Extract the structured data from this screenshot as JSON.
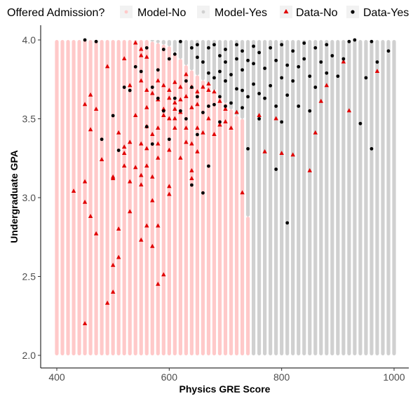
{
  "chart_data": {
    "type": "scatter",
    "title": "",
    "xlabel": "Physics GRE Score",
    "ylabel": "Undergraduate GPA",
    "xlim": [
      400,
      1000
    ],
    "ylim": [
      2.0,
      4.0
    ],
    "x_ticks": [
      400,
      600,
      800,
      1000
    ],
    "x_tick_labels": [
      "400",
      "600",
      "800",
      "1000"
    ],
    "y_ticks": [
      2.0,
      2.5,
      3.0,
      3.5,
      4.0
    ],
    "y_tick_labels": [
      "2.0",
      "2.5",
      "3.0",
      "3.5",
      "4.0"
    ],
    "grid": false,
    "legend_position": "top",
    "legend": {
      "title": "Offered Admission?",
      "entries": [
        {
          "label": "Model-No",
          "color": "#ffc9c9",
          "shape": "circle"
        },
        {
          "label": "Model-Yes",
          "color": "#d0d0d0",
          "shape": "circle"
        },
        {
          "label": "Data-No",
          "color": "#e00000",
          "shape": "triangle"
        },
        {
          "label": "Data-Yes",
          "color": "#000000",
          "shape": "circle"
        }
      ]
    },
    "model_grid": {
      "x_start": 400,
      "x_end": 1000,
      "x_step": 10,
      "y_start": 2.0,
      "y_end": 4.0,
      "y_step": 0.01,
      "boundary": [
        {
          "x": 400,
          "y": 4.0
        },
        {
          "x": 560,
          "y": 4.0
        },
        {
          "x": 600,
          "y": 3.96
        },
        {
          "x": 630,
          "y": 3.84
        },
        {
          "x": 680,
          "y": 3.68
        },
        {
          "x": 700,
          "y": 3.6
        },
        {
          "x": 720,
          "y": 3.52
        },
        {
          "x": 730,
          "y": 3.5
        },
        {
          "x": 740,
          "y": 2.88
        },
        {
          "x": 750,
          "y": 2.0
        }
      ],
      "colors": {
        "no": "#ffc9c9",
        "yes": "#d0d0d0"
      }
    },
    "series": [
      {
        "name": "Data-No",
        "color": "#e00000",
        "shape": "triangle",
        "points": [
          [
            430,
            3.04
          ],
          [
            450,
            3.59
          ],
          [
            450,
            3.1
          ],
          [
            450,
            2.97
          ],
          [
            450,
            2.2
          ],
          [
            460,
            3.65
          ],
          [
            460,
            3.43
          ],
          [
            460,
            2.88
          ],
          [
            470,
            3.56
          ],
          [
            470,
            2.77
          ],
          [
            480,
            3.24
          ],
          [
            490,
            3.83
          ],
          [
            490,
            2.33
          ],
          [
            500,
            3.13
          ],
          [
            500,
            3.12
          ],
          [
            500,
            2.57
          ],
          [
            500,
            2.4
          ],
          [
            510,
            3.41
          ],
          [
            510,
            2.8
          ],
          [
            510,
            2.62
          ],
          [
            520,
            3.88
          ],
          [
            520,
            3.32
          ],
          [
            520,
            3.28
          ],
          [
            520,
            3.2
          ],
          [
            530,
            3.71
          ],
          [
            530,
            3.35
          ],
          [
            530,
            3.1
          ],
          [
            530,
            2.91
          ],
          [
            540,
            3.98
          ],
          [
            540,
            3.52
          ],
          [
            540,
            3.19
          ],
          [
            550,
            3.94
          ],
          [
            550,
            3.9
          ],
          [
            550,
            3.74
          ],
          [
            550,
            3.34
          ],
          [
            550,
            3.14
          ],
          [
            550,
            3.08
          ],
          [
            550,
            2.73
          ],
          [
            560,
            3.89
          ],
          [
            560,
            3.68
          ],
          [
            560,
            3.57
          ],
          [
            560,
            3.45
          ],
          [
            560,
            3.31
          ],
          [
            560,
            3.2
          ],
          [
            560,
            2.82
          ],
          [
            570,
            3.66
          ],
          [
            570,
            3.4
          ],
          [
            570,
            3.13
          ],
          [
            570,
            2.98
          ],
          [
            570,
            2.69
          ],
          [
            580,
            3.74
          ],
          [
            580,
            3.62
          ],
          [
            580,
            3.44
          ],
          [
            580,
            3.34
          ],
          [
            580,
            3.25
          ],
          [
            580,
            2.82
          ],
          [
            580,
            2.45
          ],
          [
            590,
            3.71
          ],
          [
            590,
            3.56
          ],
          [
            590,
            3.52
          ],
          [
            590,
            2.51
          ],
          [
            600,
            3.68
          ],
          [
            600,
            3.63
          ],
          [
            600,
            3.5
          ],
          [
            600,
            3.3
          ],
          [
            600,
            3.07
          ],
          [
            600,
            3.02
          ],
          [
            610,
            3.73
          ],
          [
            610,
            3.6
          ],
          [
            610,
            3.56
          ],
          [
            610,
            3.5
          ],
          [
            610,
            3.44
          ],
          [
            620,
            3.7
          ],
          [
            620,
            3.62
          ],
          [
            620,
            3.54
          ],
          [
            620,
            3.25
          ],
          [
            630,
            3.78
          ],
          [
            630,
            3.64
          ],
          [
            630,
            3.44
          ],
          [
            630,
            3.35
          ],
          [
            640,
            3.7
          ],
          [
            640,
            3.57
          ],
          [
            640,
            3.34
          ],
          [
            640,
            3.17
          ],
          [
            640,
            3.12
          ],
          [
            650,
            3.67
          ],
          [
            650,
            3.59
          ],
          [
            650,
            3.44
          ],
          [
            650,
            3.29
          ],
          [
            660,
            3.7
          ],
          [
            660,
            3.41
          ],
          [
            670,
            3.72
          ],
          [
            670,
            3.68
          ],
          [
            670,
            3.5
          ],
          [
            680,
            3.67
          ],
          [
            680,
            3.4
          ],
          [
            690,
            3.61
          ],
          [
            690,
            3.46
          ],
          [
            700,
            3.56
          ],
          [
            700,
            3.48
          ],
          [
            710,
            3.44
          ],
          [
            720,
            3.54
          ],
          [
            730,
            3.03
          ],
          [
            760,
            3.52
          ],
          [
            770,
            3.29
          ],
          [
            790,
            3.5
          ],
          [
            800,
            3.28
          ],
          [
            820,
            3.27
          ],
          [
            850,
            3.17
          ],
          [
            860,
            3.41
          ],
          [
            870,
            3.61
          ],
          [
            880,
            3.71
          ],
          [
            910,
            3.86
          ],
          [
            920,
            3.55
          ],
          [
            970,
            3.8
          ]
        ]
      },
      {
        "name": "Data-Yes",
        "color": "#000000",
        "shape": "circle",
        "points": [
          [
            450,
            4.0
          ],
          [
            470,
            3.99
          ],
          [
            480,
            3.37
          ],
          [
            500,
            3.52
          ],
          [
            510,
            3.3
          ],
          [
            520,
            3.7
          ],
          [
            530,
            3.68
          ],
          [
            540,
            3.83
          ],
          [
            550,
            3.8
          ],
          [
            560,
            3.95
          ],
          [
            560,
            3.45
          ],
          [
            570,
            3.7
          ],
          [
            570,
            3.34
          ],
          [
            580,
            3.81
          ],
          [
            580,
            3.63
          ],
          [
            590,
            3.94
          ],
          [
            590,
            3.55
          ],
          [
            600,
            3.88
          ],
          [
            600,
            3.37
          ],
          [
            610,
            3.91
          ],
          [
            610,
            3.63
          ],
          [
            620,
            3.99
          ],
          [
            620,
            3.55
          ],
          [
            630,
            3.74
          ],
          [
            630,
            3.5
          ],
          [
            640,
            3.95
          ],
          [
            640,
            3.7
          ],
          [
            640,
            3.08
          ],
          [
            650,
            3.97
          ],
          [
            650,
            3.89
          ],
          [
            650,
            3.64
          ],
          [
            650,
            3.4
          ],
          [
            660,
            3.86
          ],
          [
            660,
            3.54
          ],
          [
            660,
            3.03
          ],
          [
            670,
            3.95
          ],
          [
            670,
            3.79
          ],
          [
            670,
            3.58
          ],
          [
            670,
            3.2
          ],
          [
            680,
            3.97
          ],
          [
            680,
            3.76
          ],
          [
            680,
            3.59
          ],
          [
            690,
            3.9
          ],
          [
            690,
            3.8
          ],
          [
            690,
            3.64
          ],
          [
            690,
            3.48
          ],
          [
            700,
            3.94
          ],
          [
            700,
            3.86
          ],
          [
            700,
            3.74
          ],
          [
            700,
            3.58
          ],
          [
            710,
            3.78
          ],
          [
            710,
            3.6
          ],
          [
            720,
            3.97
          ],
          [
            720,
            3.88
          ],
          [
            720,
            3.69
          ],
          [
            730,
            3.93
          ],
          [
            730,
            3.81
          ],
          [
            730,
            3.68
          ],
          [
            730,
            3.57
          ],
          [
            740,
            3.87
          ],
          [
            740,
            3.64
          ],
          [
            740,
            3.31
          ],
          [
            750,
            3.96
          ],
          [
            750,
            3.85
          ],
          [
            750,
            3.72
          ],
          [
            760,
            3.92
          ],
          [
            760,
            3.66
          ],
          [
            760,
            3.5
          ],
          [
            770,
            3.82
          ],
          [
            770,
            3.63
          ],
          [
            780,
            3.95
          ],
          [
            780,
            3.71
          ],
          [
            790,
            3.87
          ],
          [
            790,
            3.58
          ],
          [
            790,
            3.18
          ],
          [
            800,
            3.97
          ],
          [
            800,
            3.76
          ],
          [
            800,
            3.48
          ],
          [
            810,
            3.84
          ],
          [
            810,
            3.65
          ],
          [
            810,
            2.84
          ],
          [
            820,
            3.93
          ],
          [
            820,
            3.74
          ],
          [
            830,
            3.83
          ],
          [
            830,
            3.58
          ],
          [
            840,
            3.98
          ],
          [
            840,
            3.88
          ],
          [
            850,
            3.77
          ],
          [
            850,
            3.55
          ],
          [
            860,
            3.95
          ],
          [
            860,
            3.7
          ],
          [
            870,
            3.86
          ],
          [
            880,
            3.97
          ],
          [
            880,
            3.79
          ],
          [
            890,
            3.9
          ],
          [
            900,
            3.77
          ],
          [
            910,
            3.88
          ],
          [
            920,
            3.99
          ],
          [
            930,
            4.0
          ],
          [
            940,
            3.47
          ],
          [
            950,
            3.76
          ],
          [
            960,
            3.99
          ],
          [
            960,
            3.31
          ],
          [
            970,
            3.86
          ],
          [
            990,
            3.93
          ]
        ]
      }
    ]
  }
}
